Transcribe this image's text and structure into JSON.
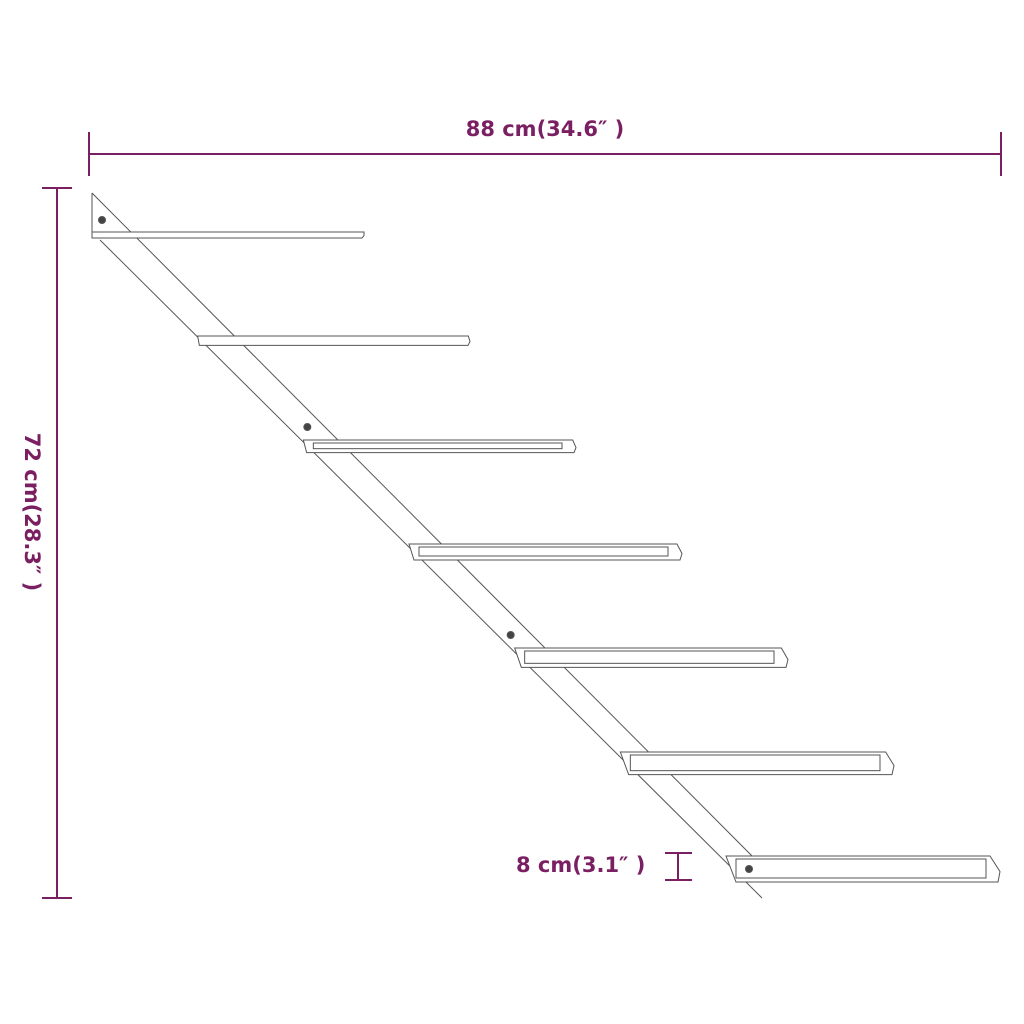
{
  "dimensions": {
    "width_label": "88 cm(34.6″ )",
    "height_label": "72 cm(28.3″ )",
    "shelf_spacing_label": "8 cm(3.1″ )"
  },
  "shelf_count": 7,
  "colors": {
    "dimension": "#7a1f62",
    "outline": "#555555"
  }
}
